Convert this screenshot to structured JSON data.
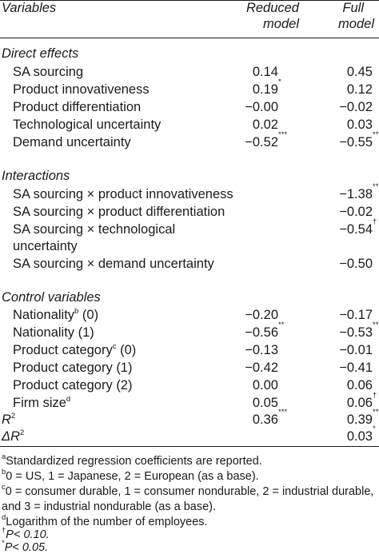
{
  "header": {
    "variables": "Variables",
    "reduced_line1": "Reduced",
    "reduced_line2": "model",
    "full_line1": "Full",
    "full_line2": "model"
  },
  "sections": {
    "direct": "Direct effects",
    "interactions": "Interactions",
    "control": "Control variables"
  },
  "rows": {
    "sa_sourcing": {
      "label": "SA sourcing",
      "reduced": "0.14",
      "full": "0.45"
    },
    "prod_innov": {
      "label": "Product innovativeness",
      "reduced": "0.19",
      "reduced_sup": "*",
      "full": "0.12"
    },
    "prod_diff": {
      "label": "Product differentiation",
      "reduced": "−0.00",
      "full": "−0.02"
    },
    "tech_unc": {
      "label": "Technological uncertainty",
      "reduced": "0.02",
      "full": "0.03"
    },
    "demand_unc": {
      "label": "Demand uncertainty",
      "reduced": "−0.52",
      "reduced_sup": "***",
      "full": "−0.55",
      "full_sup": "***"
    },
    "int_innov": {
      "label": "SA sourcing × product innovativeness",
      "full": "−1.38",
      "full_sup": "**"
    },
    "int_diff": {
      "label": "SA sourcing × product differentiation",
      "full": "−0.02"
    },
    "int_tech_1": {
      "label": "SA sourcing × technological",
      "full": "−0.54",
      "full_sup": "†"
    },
    "int_tech_2": {
      "label": "uncertainty"
    },
    "int_demand": {
      "label": "SA sourcing × demand uncertainty",
      "full": "−0.50"
    },
    "nat0": {
      "label": "Nationality",
      "label_sup": "b",
      "label_tail": " (0)",
      "reduced": "−0.20",
      "full": "−0.17"
    },
    "nat1": {
      "label": "Nationality (1)",
      "reduced": "−0.56",
      "reduced_sup": "**",
      "full": "−0.53",
      "full_sup": "**"
    },
    "cat0": {
      "label": "Product category",
      "label_sup": "c",
      "label_tail": " (0)",
      "reduced": "−0.13",
      "full": "−0.01"
    },
    "cat1": {
      "label": "Product category (1)",
      "reduced": "−0.42",
      "full": "−0.41"
    },
    "cat2": {
      "label": "Product category (2)",
      "reduced": "0.00",
      "full": "0.06"
    },
    "firm": {
      "label": "Firm size",
      "label_sup": "d",
      "reduced": "0.05",
      "full": "0.06",
      "full_sup": "†"
    },
    "r2": {
      "label": "R",
      "label_sup": "2",
      "reduced": "0.36",
      "reduced_sup": "***",
      "full": "0.39",
      "full_sup": "***"
    },
    "dr2": {
      "label": "ΔR",
      "label_sup": "2",
      "full": "0.03",
      "full_sup": "*"
    }
  },
  "footnotes": {
    "a": {
      "mark": "a",
      "text": "Standardized regression coefficients are reported."
    },
    "b": {
      "mark": "b",
      "text": "0 = US, 1 = Japanese, 2 = European (as a base)."
    },
    "c1": {
      "mark": "c",
      "text": "0 = consumer durable, 1 = consumer nondurable, 2 = industrial durable,"
    },
    "c2": {
      "text": "and 3 = industrial nondurable (as a base)."
    },
    "d": {
      "mark": "d",
      "text": "Logarithm of the number of employees."
    },
    "dag": {
      "mark": "†",
      "text": "P< 0.10."
    },
    "star": {
      "mark": "*",
      "text": "P< 0.05."
    }
  }
}
